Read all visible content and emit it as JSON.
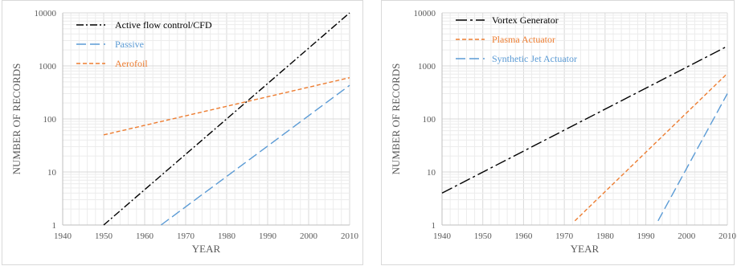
{
  "chart_data": [
    {
      "type": "line",
      "xlabel": "YEAR",
      "ylabel": "NUMBER OF RECORDS",
      "xlim": [
        1940,
        2010
      ],
      "ylim": [
        1,
        10000
      ],
      "yscale": "log",
      "x_ticks": [
        "1940",
        "1950",
        "1960",
        "1970",
        "1980",
        "1990",
        "2000",
        "2010"
      ],
      "y_ticks": [
        "1",
        "10",
        "100",
        "1000",
        "10000"
      ],
      "grid": true,
      "legend_position": "top-left",
      "series": [
        {
          "name": "Active flow control/CFD",
          "color": "#000000",
          "dash": "dash-dot",
          "x": [
            1950,
            2010
          ],
          "y": [
            1,
            10000
          ]
        },
        {
          "name": "Passive",
          "color": "#5b9bd5",
          "dash": "long-dash",
          "x": [
            1964,
            2010
          ],
          "y": [
            1,
            430
          ]
        },
        {
          "name": "Aerofoil",
          "color": "#ed7d31",
          "dash": "short-dash",
          "x": [
            1950,
            2010
          ],
          "y": [
            50,
            600
          ]
        }
      ]
    },
    {
      "type": "line",
      "xlabel": "YEAR",
      "ylabel": "NUMBER OF RECORDS",
      "xlim": [
        1940,
        2010
      ],
      "ylim": [
        1,
        10000
      ],
      "yscale": "log",
      "x_ticks": [
        "1940",
        "1950",
        "1960",
        "1970",
        "1980",
        "1990",
        "2000",
        "2010"
      ],
      "y_ticks": [
        "1",
        "10",
        "100",
        "1000",
        "10000"
      ],
      "grid": true,
      "legend_position": "top-left",
      "series": [
        {
          "name": "Vortex Generator",
          "color": "#000000",
          "dash": "long-dash-dot",
          "x": [
            1940,
            2010
          ],
          "y": [
            4,
            2350
          ]
        },
        {
          "name": "Plasma Actuator",
          "color": "#ed7d31",
          "dash": "short-dash",
          "x": [
            1972.6,
            2010
          ],
          "y": [
            1.2,
            720
          ]
        },
        {
          "name": "Synthetic Jet Actuator",
          "color": "#5b9bd5",
          "dash": "long-dash",
          "x": [
            1993,
            2010
          ],
          "y": [
            1.2,
            300
          ]
        }
      ]
    }
  ]
}
